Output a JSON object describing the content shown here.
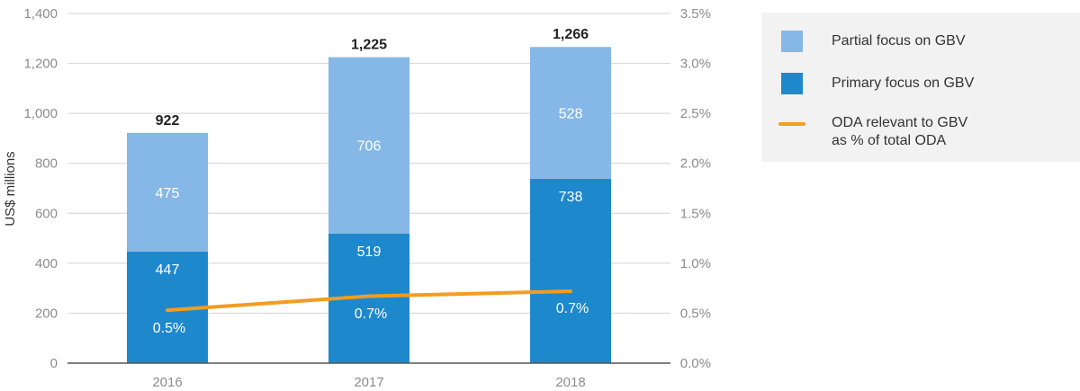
{
  "chart_data": {
    "type": "bar",
    "stacked": true,
    "categories": [
      "2016",
      "2017",
      "2018"
    ],
    "series": [
      {
        "name": "Primary focus on GBV",
        "values": [
          447,
          519,
          738
        ],
        "color": "#1e88cc"
      },
      {
        "name": "Partial focus on GBV",
        "values": [
          475,
          706,
          528
        ],
        "color": "#85b8e6"
      }
    ],
    "totals": [
      922,
      1225,
      1266
    ],
    "totals_labels": [
      "922",
      "1,225",
      "1,266"
    ],
    "line_series": {
      "name": "ODA relevant to GBV as % of total ODA",
      "axis": "right",
      "values": [
        0.5,
        0.7,
        0.7
      ],
      "labels": [
        "0.5%",
        "0.7%",
        "0.7%"
      ],
      "color": "#f39c1f"
    },
    "ylabel": "US$ millions",
    "ylim": [
      0,
      1400
    ],
    "yticks": [
      "0",
      "200",
      "400",
      "600",
      "800",
      "1,000",
      "1,200",
      "1,400"
    ],
    "y2lim": [
      0,
      3.5
    ],
    "y2ticks": [
      "0.0%",
      "0.5%",
      "1.0%",
      "1.5%",
      "2.0%",
      "2.5%",
      "3.0%",
      "3.5%"
    ],
    "grid": true,
    "legend_position": "right"
  },
  "legend": {
    "items": [
      {
        "label": "Partial focus on GBV",
        "kind": "swatch",
        "color": "#85b8e6"
      },
      {
        "label": "Primary focus on GBV",
        "kind": "swatch",
        "color": "#1e88cc"
      },
      {
        "label": "ODA relevant to GBV as % of total ODA",
        "kind": "line",
        "color": "#f39c1f"
      }
    ]
  }
}
